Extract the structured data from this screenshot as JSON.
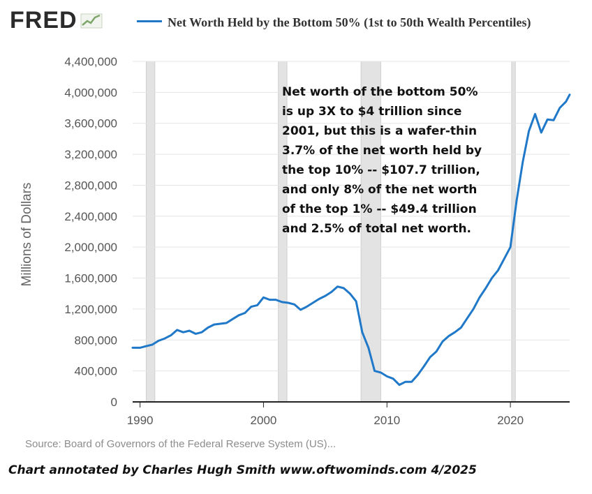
{
  "header": {
    "logo_text": "FRED",
    "legend_label": "Net Worth Held by the Bottom 50% (1st to 50th Wealth Percentiles)"
  },
  "annotation": {
    "lines": [
      "Net worth of the bottom 50%",
      "is up 3X to $4 trillion since",
      "2001, but this is a wafer-thin",
      "3.7% of the net worth held by",
      "the top 10% -- $107.7 trillion,",
      "and only 8% of the net worth",
      "of the top 1% -- $49.4 trillion",
      "and 2.5% of total net worth."
    ]
  },
  "footer": {
    "source": "Source: Board of Governors of the Federal Reserve System (US)...",
    "credit": "Chart annotated by Charles Hugh Smith  www.oftwominds.com  4/2025"
  },
  "colors": {
    "line": "#1f78c8",
    "recession": "#e3e3e3",
    "grid": "#e4e4e4",
    "axis": "#222222",
    "tick_text": "#555555"
  },
  "chart_data": {
    "type": "line",
    "ylabel": "Millions of Dollars",
    "xlim": [
      1989.4,
      2024.8
    ],
    "ylim": [
      0,
      4400000
    ],
    "y_ticks": [
      0,
      400000,
      800000,
      1200000,
      1600000,
      2000000,
      2400000,
      2800000,
      3200000,
      3600000,
      4000000,
      4400000
    ],
    "y_tick_labels": [
      "0",
      "400,000",
      "800,000",
      "1,200,000",
      "1,600,000",
      "2,000,000",
      "2,400,000",
      "2,800,000",
      "3,200,000",
      "3,600,000",
      "4,000,000",
      "4,400,000"
    ],
    "x_ticks": [
      1990,
      2000,
      2010,
      2020
    ],
    "x_tick_labels": [
      "1990",
      "2000",
      "2010",
      "2020"
    ],
    "grid": "horizontal",
    "recessions": [
      [
        1990.5,
        1991.2
      ],
      [
        2001.2,
        2001.9
      ],
      [
        2007.9,
        2009.5
      ],
      [
        2020.1,
        2020.4
      ]
    ],
    "series": [
      {
        "name": "Net Worth Held by the Bottom 50% (1st to 50th Wealth Percentiles)",
        "x": [
          1989.4,
          1990.0,
          1990.5,
          1991.0,
          1991.5,
          1992.0,
          1992.5,
          1993.0,
          1993.5,
          1994.0,
          1994.5,
          1995.0,
          1995.5,
          1996.0,
          1996.5,
          1997.0,
          1997.5,
          1998.0,
          1998.5,
          1999.0,
          1999.5,
          2000.0,
          2000.5,
          2001.0,
          2001.5,
          2002.0,
          2002.5,
          2003.0,
          2003.5,
          2004.0,
          2004.5,
          2005.0,
          2005.5,
          2006.0,
          2006.5,
          2007.0,
          2007.5,
          2008.0,
          2008.5,
          2009.0,
          2009.5,
          2010.0,
          2010.5,
          2011.0,
          2011.5,
          2012.0,
          2012.5,
          2013.0,
          2013.5,
          2014.0,
          2014.5,
          2015.0,
          2015.5,
          2016.0,
          2016.5,
          2017.0,
          2017.5,
          2018.0,
          2018.5,
          2019.0,
          2019.5,
          2020.0,
          2020.5,
          2021.0,
          2021.5,
          2022.0,
          2022.5,
          2023.0,
          2023.5,
          2024.0,
          2024.5,
          2024.8
        ],
        "y": [
          700000,
          700000,
          720000,
          740000,
          790000,
          820000,
          860000,
          930000,
          900000,
          920000,
          880000,
          900000,
          960000,
          1000000,
          1010000,
          1020000,
          1070000,
          1120000,
          1150000,
          1230000,
          1250000,
          1350000,
          1320000,
          1320000,
          1290000,
          1280000,
          1260000,
          1190000,
          1230000,
          1280000,
          1330000,
          1370000,
          1420000,
          1490000,
          1470000,
          1400000,
          1300000,
          900000,
          700000,
          400000,
          380000,
          330000,
          300000,
          220000,
          260000,
          260000,
          350000,
          460000,
          580000,
          650000,
          780000,
          850000,
          900000,
          960000,
          1080000,
          1200000,
          1350000,
          1470000,
          1600000,
          1700000,
          1850000,
          2000000,
          2600000,
          3100000,
          3500000,
          3720000,
          3480000,
          3650000,
          3640000,
          3800000,
          3880000,
          3970000
        ]
      }
    ]
  }
}
